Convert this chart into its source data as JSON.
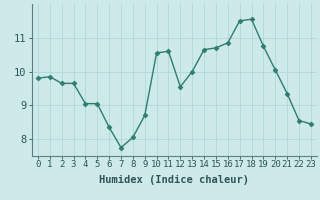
{
  "x": [
    0,
    1,
    2,
    3,
    4,
    5,
    6,
    7,
    8,
    9,
    10,
    11,
    12,
    13,
    14,
    15,
    16,
    17,
    18,
    19,
    20,
    21,
    22,
    23
  ],
  "y": [
    9.8,
    9.85,
    9.65,
    9.65,
    9.05,
    9.05,
    8.35,
    7.75,
    8.05,
    8.7,
    10.55,
    10.6,
    9.55,
    10.0,
    10.65,
    10.7,
    10.85,
    11.5,
    11.55,
    10.75,
    10.05,
    9.35,
    8.55,
    8.45
  ],
  "line_color": "#2e7d6e",
  "marker": "D",
  "markersize": 2.5,
  "linewidth": 1.0,
  "xlabel": "Humidex (Indice chaleur)",
  "ylabel": "",
  "ylim": [
    7.5,
    12.0
  ],
  "xlim": [
    -0.5,
    23.5
  ],
  "yticks": [
    8,
    9,
    10,
    11
  ],
  "xticks": [
    0,
    1,
    2,
    3,
    4,
    5,
    6,
    7,
    8,
    9,
    10,
    11,
    12,
    13,
    14,
    15,
    16,
    17,
    18,
    19,
    20,
    21,
    22,
    23
  ],
  "bg_color": "#cde9e9",
  "grid_color": "#b0d8d8",
  "tick_label_fontsize": 6.5,
  "xlabel_fontsize": 7.5,
  "ytick_fontsize": 7.5
}
